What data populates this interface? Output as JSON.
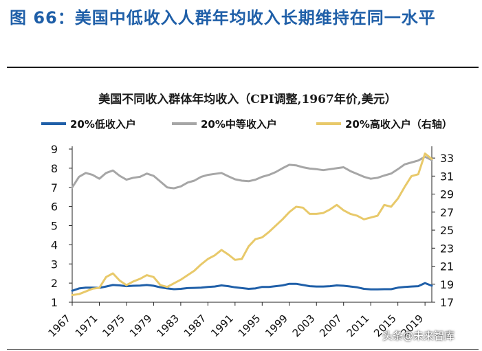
{
  "figure": {
    "title": "图 66：美国中低收入人群年均收入长期维持在同一水平",
    "watermark": "头条@未来智库"
  },
  "chart_data": {
    "type": "line",
    "title": "美国不同收入群体年均收入（CPI调整,1967年价,美元）",
    "x": [
      1967,
      1968,
      1969,
      1970,
      1971,
      1972,
      1973,
      1974,
      1975,
      1976,
      1977,
      1978,
      1979,
      1980,
      1981,
      1982,
      1983,
      1984,
      1985,
      1986,
      1987,
      1988,
      1989,
      1990,
      1991,
      1992,
      1993,
      1994,
      1995,
      1996,
      1997,
      1998,
      1999,
      2000,
      2001,
      2002,
      2003,
      2004,
      2005,
      2006,
      2007,
      2008,
      2009,
      2010,
      2011,
      2012,
      2013,
      2014,
      2015,
      2016,
      2017,
      2018,
      2019,
      2020
    ],
    "x_tick_labels": [
      "1967",
      "1971",
      "1975",
      "1979",
      "1983",
      "1987",
      "1991",
      "1995",
      "1999",
      "2003",
      "2007",
      "2011",
      "2015",
      "2019"
    ],
    "ylim_left": [
      1,
      9
    ],
    "yticks_left": [
      1,
      2,
      3,
      4,
      5,
      6,
      7,
      8,
      9
    ],
    "ylim_right": [
      17,
      34
    ],
    "yticks_right": [
      17,
      19,
      21,
      23,
      25,
      27,
      29,
      31,
      33
    ],
    "series": [
      {
        "name": "20%低收入户",
        "axis": "left",
        "color": "#1f5fa8",
        "values": [
          1.6,
          1.72,
          1.76,
          1.76,
          1.75,
          1.82,
          1.9,
          1.88,
          1.84,
          1.86,
          1.87,
          1.9,
          1.86,
          1.78,
          1.72,
          1.68,
          1.7,
          1.74,
          1.75,
          1.76,
          1.8,
          1.82,
          1.88,
          1.84,
          1.78,
          1.74,
          1.7,
          1.72,
          1.8,
          1.8,
          1.84,
          1.88,
          1.96,
          1.96,
          1.9,
          1.84,
          1.82,
          1.82,
          1.84,
          1.88,
          1.86,
          1.82,
          1.78,
          1.7,
          1.67,
          1.67,
          1.68,
          1.68,
          1.76,
          1.8,
          1.82,
          1.84,
          2.0,
          1.86
        ]
      },
      {
        "name": "20%中等收入户",
        "axis": "left",
        "color": "#a6a6a6",
        "values": [
          7.0,
          7.55,
          7.75,
          7.65,
          7.45,
          7.75,
          7.88,
          7.6,
          7.4,
          7.5,
          7.55,
          7.72,
          7.6,
          7.3,
          7.0,
          6.95,
          7.05,
          7.25,
          7.35,
          7.55,
          7.65,
          7.7,
          7.75,
          7.58,
          7.42,
          7.35,
          7.32,
          7.4,
          7.55,
          7.65,
          7.8,
          8.0,
          8.18,
          8.15,
          8.05,
          7.98,
          7.95,
          7.9,
          7.95,
          8.0,
          8.05,
          7.85,
          7.7,
          7.55,
          7.45,
          7.5,
          7.62,
          7.72,
          7.95,
          8.2,
          8.3,
          8.4,
          8.6,
          8.42
        ]
      },
      {
        "name": "20%高收入户（右轴）",
        "axis": "right",
        "color": "#e8c96a",
        "values": [
          17.8,
          17.9,
          18.2,
          18.5,
          18.6,
          19.8,
          20.2,
          19.4,
          18.9,
          19.3,
          19.6,
          20.0,
          19.8,
          18.9,
          18.7,
          19.1,
          19.5,
          20.0,
          20.5,
          21.2,
          21.8,
          22.2,
          22.8,
          22.3,
          21.7,
          21.8,
          23.2,
          24.0,
          24.2,
          24.8,
          25.5,
          26.2,
          27.0,
          27.6,
          27.5,
          26.8,
          26.8,
          26.9,
          27.3,
          27.8,
          27.2,
          26.8,
          26.6,
          26.2,
          26.4,
          26.6,
          27.8,
          27.6,
          28.5,
          29.8,
          31.0,
          31.2,
          33.5,
          32.9
        ]
      }
    ]
  }
}
